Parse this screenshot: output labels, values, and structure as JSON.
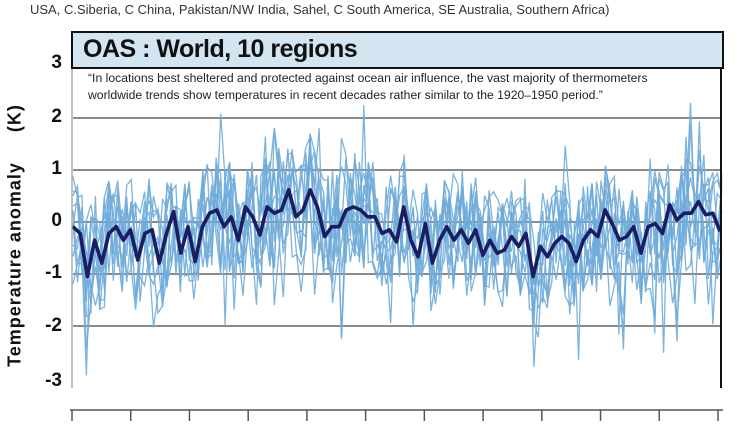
{
  "caption_fragment": "USA, C.Siberia, C China, Pakistan/NW India, Sahel, C South America, SE Australia, Southern Africa)",
  "chart_data": {
    "type": "line",
    "title": "OAS : World, 10 regions",
    "annotation_lines": [
      "“In locations best sheltered and protected against ocean air influence, the vast majority of thermometers",
      "worldwide trends show temperatures in recent decades rather similar to the 1920–1950 period.”"
    ],
    "ylabel": "Temperature anomaly",
    "yunit": "(K)",
    "ylim": [
      -3,
      3
    ],
    "yticks": [
      "3",
      "2",
      "1",
      "0",
      "-1",
      "-2",
      "-3"
    ],
    "grid": true,
    "x_tick_count": 12,
    "x_tick_labels_shown": false,
    "colors": {
      "regions": "#6fabd9",
      "mean": "#1b1d63",
      "grid": "#8a8a8a",
      "title_bg": "#d3e5f0"
    },
    "series": [
      {
        "role": "mean",
        "values": [
          -0.09,
          -0.22,
          -1.05,
          -0.35,
          -0.79,
          -0.22,
          -0.09,
          -0.35,
          -0.15,
          -0.73,
          -0.22,
          -0.15,
          -0.79,
          -0.22,
          0.2,
          -0.6,
          -0.09,
          -0.76,
          -0.09,
          0.17,
          0.23,
          -0.09,
          0.1,
          -0.35,
          0.29,
          0.1,
          -0.25,
          0.29,
          0.17,
          0.23,
          0.62,
          0.1,
          0.23,
          0.62,
          0.29,
          -0.28,
          -0.09,
          -0.09,
          0.23,
          0.29,
          0.23,
          0.1,
          0.1,
          -0.22,
          -0.15,
          -0.38,
          0.29,
          -0.35,
          -0.67,
          -0.03,
          -0.79,
          -0.35,
          -0.09,
          -0.35,
          -0.15,
          -0.41,
          -0.15,
          -0.64,
          -0.35,
          -0.6,
          -0.54,
          -0.28,
          -0.47,
          -0.22,
          -1.05,
          -0.47,
          -0.67,
          -0.41,
          -0.28,
          -0.41,
          -0.76,
          -0.35,
          -0.15,
          -0.28,
          0.23,
          -0.03,
          -0.35,
          -0.28,
          -0.09,
          -0.6,
          -0.09,
          -0.03,
          -0.22,
          0.33,
          0.04,
          0.17,
          0.17,
          0.39,
          0.14,
          0.17,
          -0.18
        ]
      }
    ],
    "region_series_count": 10
  }
}
